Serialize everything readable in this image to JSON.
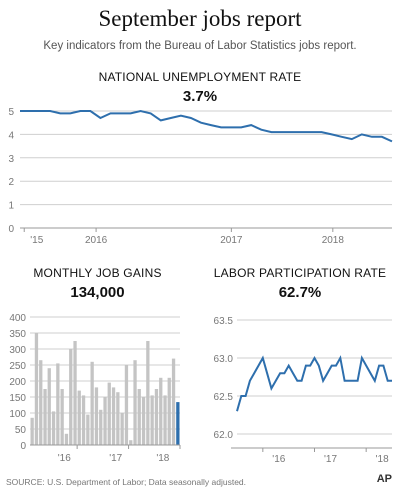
{
  "header": {
    "title": "September jobs report",
    "subtitle": "Key indicators from the Bureau of Labor Statistics jobs report."
  },
  "panels": {
    "unemployment": {
      "title": "NATIONAL UNEMPLOYMENT RATE",
      "value": "3.7%"
    },
    "job_gains": {
      "title": "MONTHLY JOB GAINS",
      "value": "134,000"
    },
    "participation": {
      "title": "LABOR PARTICIPATION RATE",
      "value": "62.7%"
    }
  },
  "footer": {
    "source": "SOURCE: U.S. Department of Labor; Data seasonally adjusted.",
    "logo": "AP"
  },
  "colors": {
    "line": "#2e6fad",
    "bar": "#c4c4c4",
    "bar_highlight": "#2e6fad",
    "grid": "#cfcfcf",
    "text": "#777777"
  },
  "chart_data": [
    {
      "type": "line",
      "title": "NATIONAL UNEMPLOYMENT RATE",
      "x_tick_labels": [
        "'15",
        "2016",
        "2017",
        "2018"
      ],
      "y_ticks": [
        0,
        1,
        2,
        3,
        4,
        5
      ],
      "ylim": [
        0,
        5.3
      ],
      "xlim": [
        0,
        44
      ],
      "grid": true,
      "series": [
        {
          "values": [
            5.0,
            5.0,
            5.0,
            5.0,
            4.9,
            4.9,
            5.0,
            5.0,
            4.7,
            4.9,
            4.9,
            4.9,
            5.0,
            4.9,
            4.6,
            4.7,
            4.8,
            4.7,
            4.5,
            4.4,
            4.3,
            4.3,
            4.3,
            4.4,
            4.2,
            4.1,
            4.1,
            4.1,
            4.1,
            4.1,
            4.1,
            4.0,
            3.9,
            3.8,
            4.0,
            3.9,
            3.9,
            3.7
          ]
        }
      ]
    },
    {
      "type": "bar",
      "title": "MONTHLY JOB GAINS",
      "x_tick_labels": [
        "'16",
        "'17",
        "'18"
      ],
      "y_ticks": [
        0,
        50,
        100,
        150,
        200,
        250,
        300,
        350,
        400
      ],
      "ylim": [
        0,
        400
      ],
      "grid": true,
      "series": [
        {
          "values": [
            85,
            350,
            265,
            175,
            240,
            105,
            255,
            175,
            35,
            300,
            325,
            170,
            155,
            95,
            260,
            180,
            110,
            150,
            195,
            180,
            165,
            100,
            250,
            15,
            265,
            175,
            150,
            325,
            155,
            175,
            210,
            155,
            210,
            270,
            134
          ]
        }
      ]
    },
    {
      "type": "line",
      "title": "LABOR PARTICIPATION RATE",
      "x_tick_labels": [
        "'16",
        "'17",
        "'18"
      ],
      "y_ticks": [
        62.0,
        62.5,
        63.0,
        63.5
      ],
      "ylim": [
        62.0,
        63.5
      ],
      "grid": true,
      "series": [
        {
          "values": [
            62.3,
            62.5,
            62.5,
            62.7,
            62.8,
            62.9,
            63.0,
            62.8,
            62.6,
            62.7,
            62.8,
            62.8,
            62.9,
            62.8,
            62.7,
            62.7,
            62.9,
            62.9,
            63.0,
            62.9,
            62.7,
            62.8,
            62.9,
            62.9,
            63.0,
            62.7,
            62.7,
            62.7,
            62.7,
            63.0,
            62.9,
            62.8,
            62.7,
            62.9,
            62.9,
            62.7,
            62.7
          ]
        }
      ]
    }
  ]
}
